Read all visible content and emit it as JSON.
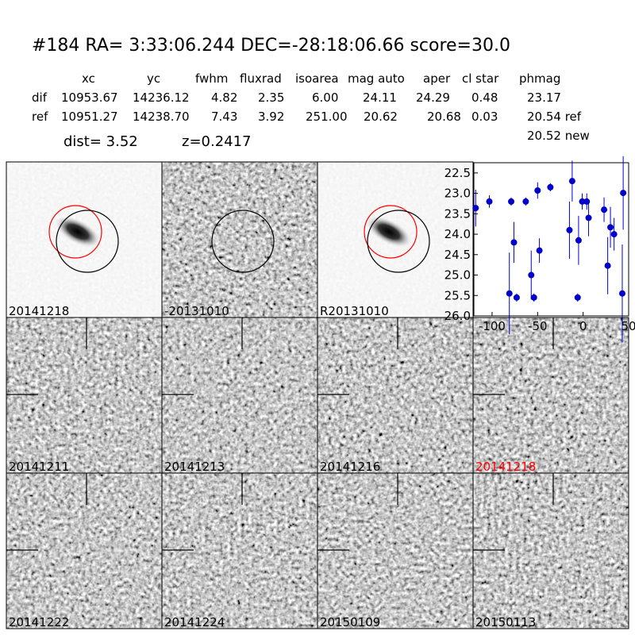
{
  "header": {
    "title": "#184   RA= 3:33:06.244 DEC=-28:18:06.66       score=30.0",
    "dist": "dist=  3.52",
    "z": "z=0.2417",
    "note": "20.52 new"
  },
  "table": {
    "columns": [
      "xc",
      "yc",
      "fwhm",
      "fluxrad",
      "isoarea",
      "mag auto",
      "aper",
      "cl star",
      "phmag"
    ],
    "rows": [
      {
        "name": "dif",
        "cells": [
          "10953.67",
          "14236.12",
          "4.82",
          "2.35",
          "6.00",
          "24.11",
          "24.29",
          "0.48",
          "23.17"
        ]
      },
      {
        "name": "ref",
        "cells": [
          "10951.27",
          "14238.70",
          "7.43",
          "3.92",
          "251.00",
          "20.62",
          "20.68",
          "0.03",
          "20.54 ref"
        ]
      }
    ]
  },
  "panels": [
    {
      "label": "20141218",
      "kind": "reference"
    },
    {
      "label": "-20131010",
      "kind": "difference"
    },
    {
      "label": "R20131010",
      "kind": "reference"
    },
    {
      "label": "20141211",
      "kind": "stamp"
    },
    {
      "label": "20141213",
      "kind": "stamp"
    },
    {
      "label": "20141216",
      "kind": "stamp"
    },
    {
      "label": "20141218",
      "kind": "stamp",
      "color": "#ff0000"
    },
    {
      "label": "20141222",
      "kind": "stamp"
    },
    {
      "label": "20141224",
      "kind": "stamp"
    },
    {
      "label": "20150109",
      "kind": "stamp"
    },
    {
      "label": "20150113",
      "kind": "stamp"
    }
  ],
  "chart_data": {
    "type": "scatter",
    "xlim": [
      -120,
      50
    ],
    "xticks": [
      -100,
      -50,
      0,
      50
    ],
    "ylim": [
      26,
      22.25
    ],
    "yticks": [
      22.5,
      {
        "value": 23,
        "label": "23.0"
      },
      23.5,
      {
        "value": 24,
        "label": "24.0"
      },
      24.5,
      {
        "value": 25,
        "label": "25.0"
      },
      25.5,
      {
        "value": 26,
        "label": "26.0"
      }
    ],
    "series": [
      {
        "color": "#0000cc",
        "x": [
          -118,
          -103,
          -81,
          -79,
          -76,
          -73,
          -63,
          -57,
          -54,
          -50,
          -48,
          -36,
          -15,
          -12,
          -5,
          -6,
          -1,
          4,
          6,
          23,
          27,
          30,
          34,
          43,
          44
        ],
        "values": [
          23.36,
          23.2,
          25.45,
          23.2,
          24.2,
          25.55,
          23.2,
          25.0,
          25.55,
          22.93,
          24.4,
          22.85,
          23.9,
          22.7,
          24.15,
          25.55,
          23.2,
          23.2,
          23.6,
          23.4,
          24.77,
          23.83,
          24.0,
          25.45,
          22.99
        ],
        "errors": [
          0.45,
          0.15,
          1.0,
          0.1,
          0.5,
          0.1,
          0.1,
          0.6,
          0.1,
          0.2,
          0.3,
          0.1,
          0.7,
          0.5,
          0.6,
          0.1,
          0.2,
          0.2,
          0.45,
          0.3,
          0.7,
          0.5,
          0.4,
          1.2,
          0.9
        ]
      }
    ]
  }
}
